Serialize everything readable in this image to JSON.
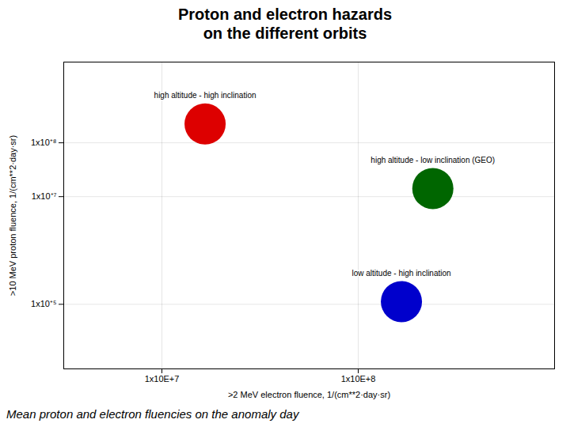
{
  "chart_data": {
    "type": "scatter",
    "title": "Proton and electron hazards\non the different orbits",
    "subtitle": "Mean proton and electron fluencies on the anomaly day",
    "xlabel": ">2 MeV electron fluence, 1/(cm**2·day·sr)",
    "ylabel": ">10 MeV proton fluence, 1/(cm**2·day·sr)",
    "xlim": [
      6.5,
      9.0
    ],
    "ylim": [
      3.8,
      9.5
    ],
    "xticks": [
      {
        "value": 7,
        "label": "1x10E+7"
      },
      {
        "value": 8,
        "label": "1x10E+8"
      }
    ],
    "yticks": [
      {
        "value": 5,
        "label": "1x10⁺⁵"
      },
      {
        "value": 7,
        "label": "1x10⁺⁷"
      },
      {
        "value": 8,
        "label": "1x10⁺⁸"
      }
    ],
    "grid": true,
    "series": [
      {
        "name": "high altitude - high inclination",
        "color": "#dd0000",
        "x": [
          7.22
        ],
        "values": [
          8.35
        ]
      },
      {
        "name": "high altitude - low inclination (GEO)",
        "color": "#006600",
        "x": [
          8.38
        ],
        "values": [
          7.15
        ]
      },
      {
        "name": "low altitude - high inclination",
        "color": "#0000cc",
        "x": [
          8.22
        ],
        "values": [
          5.05
        ]
      }
    ]
  }
}
